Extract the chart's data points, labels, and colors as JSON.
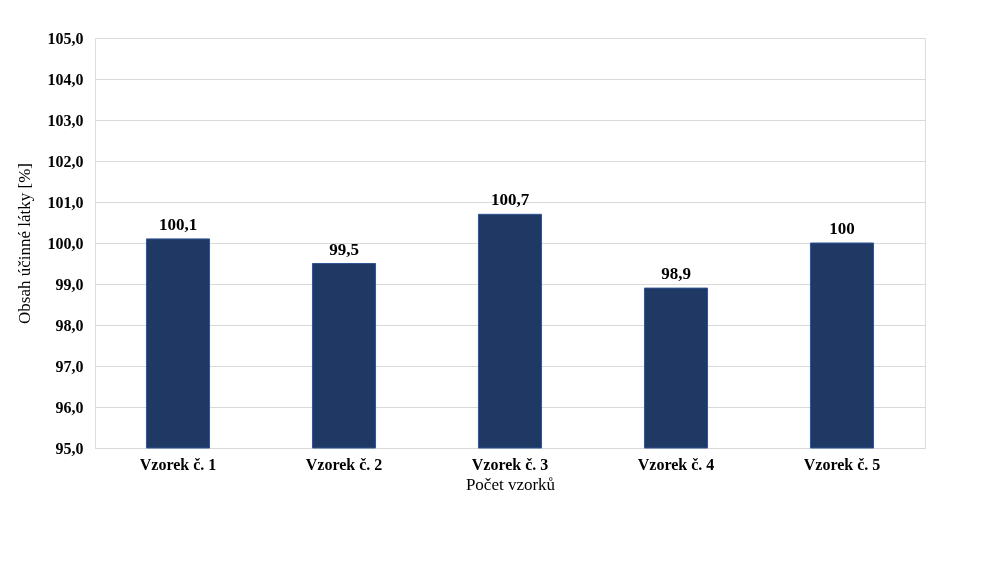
{
  "chart_data": {
    "type": "bar",
    "xlabel": "Počet vzorků",
    "ylabel": "Obsah účinné látky [%]",
    "categories": [
      "Vzorek č. 1",
      "Vzorek č. 2",
      "Vzorek č. 3",
      "Vzorek č. 4",
      "Vzorek č. 5"
    ],
    "values": [
      100.1,
      99.5,
      100.7,
      98.9,
      100
    ],
    "value_labels": [
      "100,1",
      "99,5",
      "100,7",
      "98,9",
      "100"
    ],
    "color": "#203864",
    "ylim": [
      95,
      105
    ],
    "yticks": [
      {
        "value": 95,
        "label": "95,0"
      },
      {
        "value": 96,
        "label": "96,0"
      },
      {
        "value": 97,
        "label": "97,0"
      },
      {
        "value": 98,
        "label": "98,0"
      },
      {
        "value": 99,
        "label": "99,0"
      },
      {
        "value": 100,
        "label": "100,0"
      },
      {
        "value": 101,
        "label": "101,0"
      },
      {
        "value": 102,
        "label": "102,0"
      },
      {
        "value": 103,
        "label": "103,0"
      },
      {
        "value": 104,
        "label": "104,0"
      },
      {
        "value": 105,
        "label": "105,0"
      }
    ],
    "grid": "y"
  }
}
